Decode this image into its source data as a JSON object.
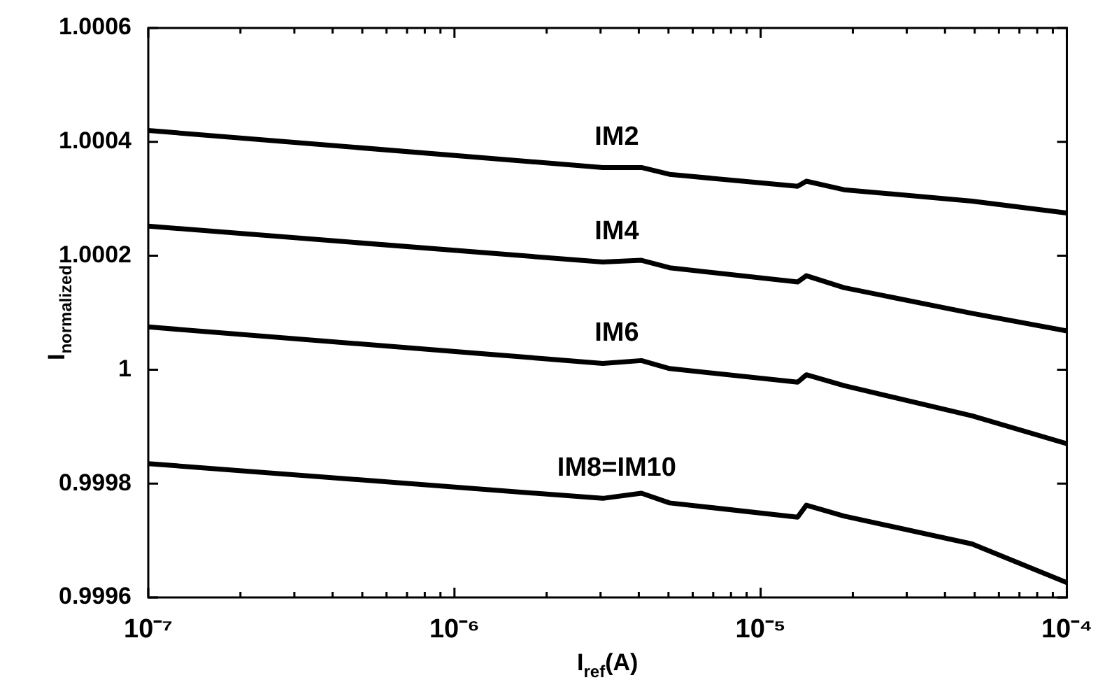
{
  "chart_data": {
    "type": "line",
    "xlabel": "I$_{ref}$(A)",
    "ylabel": "I$_{normalized}$",
    "log": "x",
    "grid": false,
    "legend": false,
    "marker": "none",
    "line_style": "solid",
    "x": [
      1e-07,
      3.05e-06,
      4.08e-06,
      5.04e-06,
      1.32e-05,
      1.41e-05,
      1.87e-05,
      4.9e-05,
      0.0001
    ],
    "xlim": [
      1e-07,
      0.0001
    ],
    "xticks": [
      {
        "value": 1e-07,
        "label": "10⁻⁷"
      },
      {
        "value": 2e-07,
        "label": null
      },
      {
        "value": 3e-07,
        "label": null
      },
      {
        "value": 4e-07,
        "label": null
      },
      {
        "value": 5e-07,
        "label": null
      },
      {
        "value": 6e-07,
        "label": null
      },
      {
        "value": 7e-07,
        "label": null
      },
      {
        "value": 8e-07,
        "label": null
      },
      {
        "value": 9e-07,
        "label": null
      },
      {
        "value": 1e-06,
        "label": "10⁻⁶"
      },
      {
        "value": 2e-06,
        "label": null
      },
      {
        "value": 3e-06,
        "label": null
      },
      {
        "value": 4e-06,
        "label": null
      },
      {
        "value": 5e-06,
        "label": null
      },
      {
        "value": 6e-06,
        "label": null
      },
      {
        "value": 7e-06,
        "label": null
      },
      {
        "value": 8e-06,
        "label": null
      },
      {
        "value": 9e-06,
        "label": null
      },
      {
        "value": 1e-05,
        "label": "10⁻⁵"
      },
      {
        "value": 2e-05,
        "label": null
      },
      {
        "value": 3e-05,
        "label": null
      },
      {
        "value": 4e-05,
        "label": null
      },
      {
        "value": 5e-05,
        "label": null
      },
      {
        "value": 6e-05,
        "label": null
      },
      {
        "value": 7e-05,
        "label": null
      },
      {
        "value": 8e-05,
        "label": null
      },
      {
        "value": 9e-05,
        "label": null
      },
      {
        "value": 0.0001,
        "label": "10⁻⁴"
      }
    ],
    "ylim": [
      0.9996,
      1.0006
    ],
    "yticks": [
      0.9996,
      0.9998,
      1,
      1.0002,
      1.0004,
      1.0006
    ],
    "series": [
      {
        "name": "IM2",
        "color": "#000000",
        "values": [
          1.00042,
          1.000355,
          1.000355,
          1.000343,
          1.000322,
          1.000331,
          1.000316,
          1.000296,
          1.000275
        ]
      },
      {
        "name": "IM4",
        "color": "#000000",
        "values": [
          1.000252,
          1.000189,
          1.000192,
          1.000179,
          1.000154,
          1.000165,
          1.000144,
          1.000099,
          1.000068
        ]
      },
      {
        "name": "IM6",
        "color": "#000000",
        "values": [
          1.000075,
          1.000011,
          1.000016,
          1.000002,
          0.999978,
          0.999991,
          0.999972,
          0.999919,
          0.99987
        ]
      },
      {
        "name": "IM8=IM10",
        "color": "#000000",
        "values": [
          0.999835,
          0.999774,
          0.999783,
          0.999766,
          0.999741,
          0.999762,
          0.999743,
          0.999694,
          0.999626
        ]
      }
    ]
  }
}
